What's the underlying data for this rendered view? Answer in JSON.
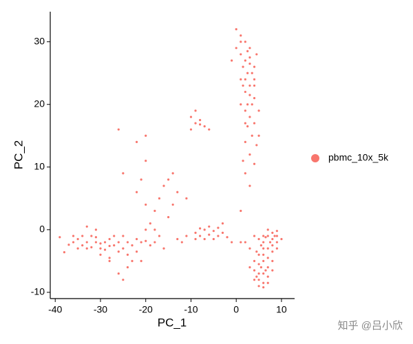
{
  "chart_data": {
    "type": "scatter",
    "x_label": "PC_1",
    "y_label": "PC_2",
    "xlim": [
      -41.1,
      12.9
    ],
    "ylim": [
      -11.0,
      34.8
    ],
    "xticks": [
      -40,
      -30,
      -20,
      -10,
      0,
      10
    ],
    "yticks": [
      -10,
      0,
      10,
      20,
      30
    ],
    "grid": false,
    "legend": "right",
    "watermark": "知乎 @吕小欣",
    "series": [
      {
        "name": "pbmc_10x_5k",
        "color": "#F8766D",
        "x": [
          -36,
          -35,
          -34,
          -33,
          -32,
          -31,
          -30,
          -29,
          -28,
          -27,
          -26,
          -25,
          -24,
          -23,
          -22,
          -34,
          -33,
          -32,
          -31,
          -30,
          -29,
          -28,
          -27,
          -26,
          -35,
          -36,
          -37,
          -38,
          -39,
          -33,
          -31,
          -30,
          -28,
          -25,
          -24,
          -22,
          -21,
          -20,
          -19,
          -18,
          -24,
          -23,
          -21,
          -20,
          -19,
          -18,
          -17,
          -16,
          -15,
          -14,
          -13,
          -17,
          -15,
          -14,
          -16,
          -12,
          -11,
          -20,
          -22,
          -21,
          -18,
          -26,
          -25,
          -13,
          -26,
          -20,
          -22,
          -20,
          -25,
          -28,
          -10,
          -9,
          -9,
          -8,
          -7,
          -6,
          -8,
          -10,
          -9,
          -8,
          -7,
          -6,
          -5,
          -4,
          -3,
          -2,
          -6,
          -5,
          -7,
          -9,
          -4,
          -8,
          -1,
          1,
          -11,
          -3,
          0,
          1,
          2,
          3,
          1,
          2,
          3,
          4,
          1.5,
          2.5,
          3.5,
          1,
          2,
          3,
          4,
          2,
          3,
          2.5,
          3.5,
          2,
          3,
          4,
          2.5,
          3.5,
          2,
          4.5,
          3,
          1.5,
          4,
          2,
          3,
          1,
          5,
          0,
          -1,
          1,
          4.5,
          2.5,
          3,
          1.5,
          4,
          2,
          5,
          1,
          4,
          4,
          5,
          6,
          7,
          8,
          9,
          10,
          8,
          7,
          9,
          6,
          7,
          8,
          9,
          5,
          6,
          7,
          8,
          4,
          5,
          6,
          7,
          8,
          4,
          5,
          6,
          7,
          5,
          6,
          7,
          6,
          4,
          3,
          3,
          2,
          9,
          8,
          5.5,
          6.5,
          4.5,
          7.5,
          5.5,
          8.5,
          6.5,
          4.5,
          5,
          6
        ],
        "values": [
          -2,
          -1.5,
          -2.5,
          -2,
          -1,
          -2,
          -3,
          -2,
          -1.5,
          -2.5,
          -2,
          -3,
          -2,
          -2.5,
          -1.5,
          -1,
          -3,
          -2.8,
          -1.2,
          -2.2,
          -3.2,
          -2.6,
          -1,
          -3.5,
          -3,
          -1,
          -2.4,
          -3.6,
          -1.2,
          0.5,
          0,
          -4,
          -4.5,
          -1,
          -4,
          -3.5,
          -2,
          -1.8,
          -2.5,
          -2,
          -6,
          -5,
          -5,
          0,
          1,
          3,
          5,
          7,
          8,
          9,
          6,
          -1,
          2,
          4,
          -3,
          -2,
          5,
          4,
          6,
          8,
          0,
          -7,
          -8,
          -1.5,
          16,
          15,
          14,
          11,
          9,
          -5,
          18,
          19,
          17,
          17.5,
          16.5,
          16,
          16.8,
          16,
          -0.5,
          -1,
          0,
          -0.8,
          -0.2,
          -1,
          -0.5,
          -1.2,
          0.5,
          -1.5,
          -1.5,
          -1.5,
          0.3,
          0.2,
          -2,
          -2,
          -1,
          1,
          32,
          31,
          30,
          29,
          28,
          27,
          26.5,
          26,
          26,
          25,
          25,
          24,
          24,
          23,
          23,
          22,
          21.5,
          20,
          20,
          19,
          18,
          17,
          16.5,
          15,
          14,
          13.5,
          12,
          11,
          10.5,
          9,
          7,
          3,
          19,
          29,
          27,
          30,
          28,
          28.5,
          27.5,
          23,
          21,
          17,
          15,
          20,
          24,
          -1,
          -1.5,
          -2,
          -1,
          -1.5,
          -1,
          -1.5,
          -0.5,
          0,
          -0.2,
          -3,
          -3,
          -2.5,
          -2,
          -4,
          -4,
          -4.5,
          -3.5,
          -5,
          -5.5,
          -5,
          -6,
          -5,
          -6.5,
          -7,
          -7,
          -7.5,
          -8,
          -8.5,
          -8.5,
          -9.2,
          -8,
          -6,
          -3,
          -2,
          -3,
          -6.5,
          -6,
          -6.5,
          -3.5,
          -2,
          -2.5,
          -1,
          -1.2,
          -7.5,
          -9,
          -1
        ]
      }
    ]
  }
}
